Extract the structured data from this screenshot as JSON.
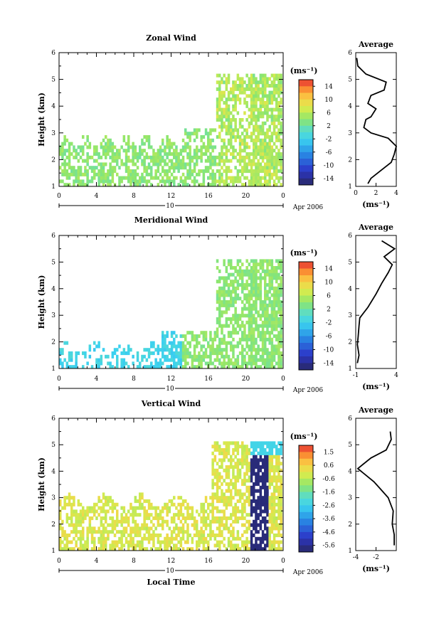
{
  "axis_common": {
    "height_label": "Height (km)",
    "time_label": "Local Time",
    "date_label": "Apr 2006",
    "day_label": "10",
    "unit_label": "(ms⁻¹)",
    "avg_title": "Average"
  },
  "chart_data": [
    {
      "type": "heatmap",
      "title": "Zonal Wind",
      "ylabel": "Height (km)",
      "ylim": [
        1,
        6
      ],
      "yticks": [
        "1",
        "2",
        "3",
        "4",
        "5",
        "6"
      ],
      "xlim": [
        0,
        24
      ],
      "xticks": [
        "0",
        "4",
        "8",
        "12",
        "16",
        "20",
        "0"
      ],
      "x_day": "10",
      "x_date": "Apr 2006",
      "colorbar": {
        "label": "(ms⁻¹)",
        "ticks": [
          "14",
          "10",
          "6",
          "2",
          "-2",
          "-6",
          "-10",
          "-14"
        ],
        "range": [
          -15,
          15
        ]
      },
      "average_profile": {
        "title": "Average",
        "xlabel": "(ms⁻¹)",
        "xlim": [
          0,
          4
        ],
        "xticks": [
          "0",
          "2",
          "4"
        ],
        "ylim": [
          1,
          6
        ],
        "yticks": [
          "1",
          "2",
          "3",
          "4",
          "5",
          "6"
        ],
        "points": [
          [
            1.2,
            1.1
          ],
          [
            1.5,
            1.3
          ],
          [
            2.5,
            1.6
          ],
          [
            3.5,
            1.9
          ],
          [
            3.8,
            2.2
          ],
          [
            4.0,
            2.5
          ],
          [
            3.2,
            2.8
          ],
          [
            1.5,
            3.0
          ],
          [
            0.8,
            3.2
          ],
          [
            1.0,
            3.5
          ],
          [
            1.5,
            3.6
          ],
          [
            2.0,
            3.9
          ],
          [
            1.2,
            4.1
          ],
          [
            1.5,
            4.4
          ],
          [
            2.8,
            4.6
          ],
          [
            3.0,
            4.9
          ],
          [
            1.0,
            5.2
          ],
          [
            0.2,
            5.5
          ],
          [
            0.1,
            5.8
          ]
        ]
      }
    },
    {
      "type": "heatmap",
      "title": "Meridional Wind",
      "ylabel": "Height (km)",
      "ylim": [
        1,
        6
      ],
      "yticks": [
        "1",
        "2",
        "3",
        "4",
        "5",
        "6"
      ],
      "xlim": [
        0,
        24
      ],
      "xticks": [
        "0",
        "4",
        "8",
        "12",
        "16",
        "20",
        "0"
      ],
      "x_day": "10",
      "x_date": "Apr 2006",
      "colorbar": {
        "label": "(ms⁻¹)",
        "ticks": [
          "14",
          "10",
          "6",
          "2",
          "-2",
          "-6",
          "-10",
          "-14"
        ],
        "range": [
          -15,
          15
        ]
      },
      "average_profile": {
        "title": "Average",
        "xlabel": "(ms⁻¹)",
        "xlim": [
          -1,
          4
        ],
        "xticks": [
          "-1",
          "4"
        ],
        "ylim": [
          1,
          6
        ],
        "yticks": [
          "1",
          "2",
          "3",
          "4",
          "5",
          "6"
        ],
        "points": [
          [
            -0.8,
            1.2
          ],
          [
            -0.6,
            1.5
          ],
          [
            -0.8,
            1.9
          ],
          [
            -0.7,
            2.2
          ],
          [
            -0.6,
            2.6
          ],
          [
            -0.5,
            2.9
          ],
          [
            0.5,
            3.3
          ],
          [
            1.5,
            3.8
          ],
          [
            2.2,
            4.2
          ],
          [
            3.0,
            4.6
          ],
          [
            3.5,
            4.9
          ],
          [
            2.5,
            5.2
          ],
          [
            3.8,
            5.5
          ],
          [
            2.2,
            5.8
          ]
        ]
      }
    },
    {
      "type": "heatmap",
      "title": "Vertical Wind",
      "ylabel": "Height (km)",
      "ylim": [
        1,
        6
      ],
      "yticks": [
        "1",
        "2",
        "3",
        "4",
        "5",
        "6"
      ],
      "xlim": [
        0,
        24
      ],
      "xticks": [
        "0",
        "4",
        "8",
        "12",
        "16",
        "20",
        "0"
      ],
      "x_day": "10",
      "x_date": "Apr 2006",
      "xlabel": "Local Time",
      "colorbar": {
        "label": "(ms⁻¹)",
        "ticks": [
          "1.5",
          "0.6",
          "-0.6",
          "-1.6",
          "-2.6",
          "-3.6",
          "-4.6",
          "-5.6"
        ],
        "range": [
          -6.1,
          2
        ]
      },
      "average_profile": {
        "title": "Average",
        "xlabel": "(ms⁻¹)",
        "xlim": [
          -4,
          0
        ],
        "xticks": [
          "-4",
          "-2"
        ],
        "ylim": [
          1,
          6
        ],
        "yticks": [
          "1",
          "2",
          "3",
          "4",
          "5",
          "6"
        ],
        "points": [
          [
            -0.2,
            1.2
          ],
          [
            -0.2,
            1.6
          ],
          [
            -0.4,
            2.0
          ],
          [
            -0.3,
            2.5
          ],
          [
            -0.8,
            3.0
          ],
          [
            -1.5,
            3.3
          ],
          [
            -2.2,
            3.6
          ],
          [
            -3.8,
            4.1
          ],
          [
            -2.5,
            4.5
          ],
          [
            -1.0,
            4.8
          ],
          [
            -0.5,
            5.2
          ],
          [
            -0.6,
            5.5
          ]
        ]
      }
    }
  ]
}
